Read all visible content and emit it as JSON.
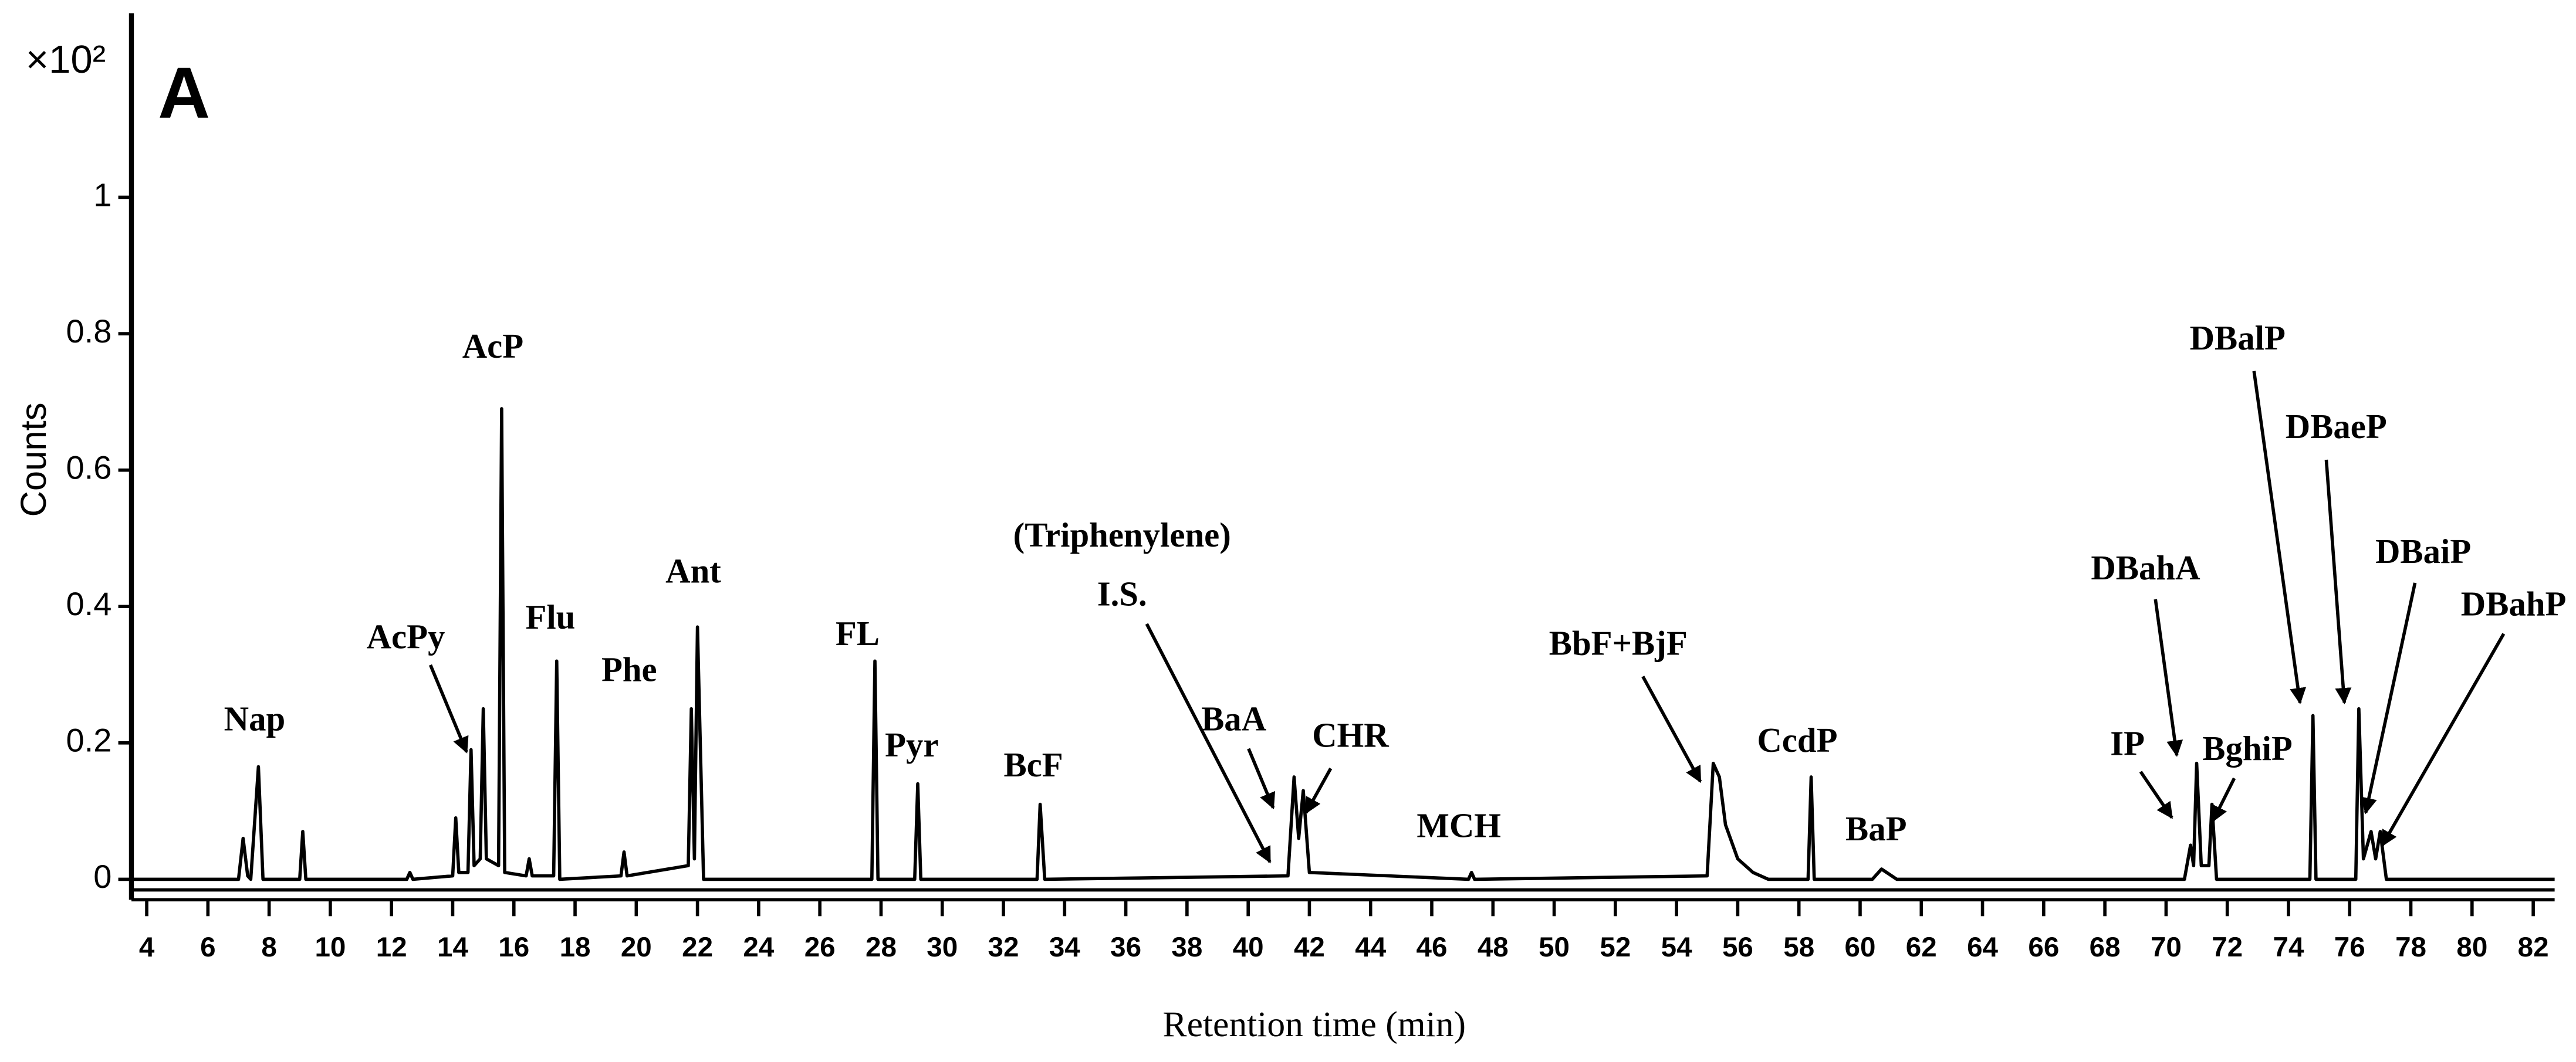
{
  "chart_data": {
    "type": "line",
    "panel_label": "A",
    "y_multiplier": "×10²",
    "x_label": "Retention time (min)",
    "y_label": "Counts",
    "color": "#000000",
    "xlim": [
      3.5,
      82.7
    ],
    "ylim": [
      -0.03,
      1.27
    ],
    "xticks": [
      4,
      6,
      8,
      10,
      12,
      14,
      16,
      18,
      20,
      22,
      24,
      26,
      28,
      30,
      32,
      34,
      36,
      38,
      40,
      42,
      44,
      46,
      48,
      50,
      52,
      54,
      56,
      58,
      60,
      62,
      64,
      66,
      68,
      70,
      72,
      74,
      76,
      78,
      80,
      82
    ],
    "yticks": [
      0,
      0.2,
      0.4,
      0.6,
      0.8,
      1
    ],
    "x": [
      3.5,
      7.0,
      7.15,
      7.3,
      7.4,
      7.65,
      7.8,
      9.0,
      9.1,
      9.2,
      12.5,
      12.6,
      12.7,
      14.0,
      14.1,
      14.2,
      14.5,
      14.6,
      14.7,
      14.9,
      15.0,
      15.1,
      15.5,
      15.6,
      15.7,
      16.4,
      16.5,
      16.6,
      17.3,
      17.4,
      17.5,
      19.5,
      19.6,
      19.7,
      21.7,
      21.8,
      21.9,
      22.0,
      22.2,
      27.7,
      27.8,
      27.9,
      29.1,
      29.2,
      29.3,
      33.1,
      33.2,
      33.35,
      41.3,
      41.5,
      41.65,
      41.8,
      42.0,
      47.2,
      47.3,
      47.4,
      55.0,
      55.2,
      55.4,
      55.6,
      56.0,
      56.5,
      57.0,
      58.3,
      58.4,
      58.5,
      60.4,
      60.7,
      61.2,
      70.6,
      70.8,
      70.9,
      71.0,
      71.15,
      71.4,
      71.5,
      71.65,
      74.7,
      74.8,
      74.9,
      76.2,
      76.3,
      76.45,
      76.7,
      76.85,
      77.0,
      77.2,
      82.7
    ],
    "values": [
      0,
      0,
      0.06,
      0.005,
      0,
      0.165,
      0,
      0,
      0.07,
      0,
      0,
      0.01,
      0,
      0.005,
      0.09,
      0.01,
      0.01,
      0.19,
      0.02,
      0.03,
      0.25,
      0.03,
      0.02,
      0.69,
      0.01,
      0.005,
      0.03,
      0.005,
      0.005,
      0.32,
      0,
      0.005,
      0.04,
      0.005,
      0.02,
      0.25,
      0.03,
      0.37,
      0,
      0,
      0.32,
      0,
      0,
      0.14,
      0,
      0,
      0.11,
      0,
      0.005,
      0.15,
      0.06,
      0.13,
      0.01,
      0,
      0.01,
      0,
      0.005,
      0.17,
      0.15,
      0.08,
      0.03,
      0.01,
      0,
      0,
      0.15,
      0,
      0,
      0.015,
      0,
      0,
      0.05,
      0.02,
      0.17,
      0.02,
      0.02,
      0.11,
      0,
      0,
      0.24,
      0,
      0,
      0.25,
      0.03,
      0.07,
      0.03,
      0.07,
      0,
      0
    ],
    "annotations": [
      "Nap",
      "AcPy",
      "AcP",
      "Flu",
      "Phe",
      "Ant",
      "FL",
      "Pyr",
      "BcF",
      "(Triphenylene)",
      "I.S.",
      "BaA",
      "CHR",
      "MCH",
      "BbF+BjF",
      "CcdP",
      "BaP",
      "DBahA",
      "IP",
      "BghiP",
      "DBalP",
      "DBaeP",
      "DBaiP",
      "DBahP"
    ]
  }
}
